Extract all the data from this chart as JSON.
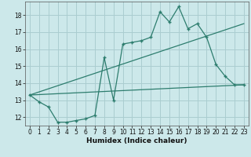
{
  "xlabel": "Humidex (Indice chaleur)",
  "background_color": "#cce8ea",
  "grid_color": "#aacdd0",
  "line_color": "#2d7d6e",
  "xlim": [
    -0.5,
    23.5
  ],
  "ylim": [
    11.5,
    18.8
  ],
  "yticks": [
    12,
    13,
    14,
    15,
    16,
    17,
    18
  ],
  "xticks": [
    0,
    1,
    2,
    3,
    4,
    5,
    6,
    7,
    8,
    9,
    10,
    11,
    12,
    13,
    14,
    15,
    16,
    17,
    18,
    19,
    20,
    21,
    22,
    23
  ],
  "line1_x": [
    0,
    1,
    2,
    3,
    4,
    5,
    6,
    7,
    8,
    9,
    10,
    11,
    12,
    13,
    14,
    15,
    16,
    17,
    18,
    19,
    20,
    21,
    22,
    23
  ],
  "line1_y": [
    13.3,
    12.9,
    12.6,
    11.7,
    11.7,
    11.8,
    11.9,
    12.1,
    15.5,
    13.0,
    16.3,
    16.4,
    16.5,
    16.7,
    18.2,
    17.6,
    18.5,
    17.2,
    17.5,
    16.7,
    15.1,
    14.4,
    13.9,
    13.9
  ],
  "line2_x": [
    0,
    23
  ],
  "line2_y": [
    13.3,
    13.9
  ],
  "line3_x": [
    0,
    23
  ],
  "line3_y": [
    13.3,
    17.5
  ]
}
